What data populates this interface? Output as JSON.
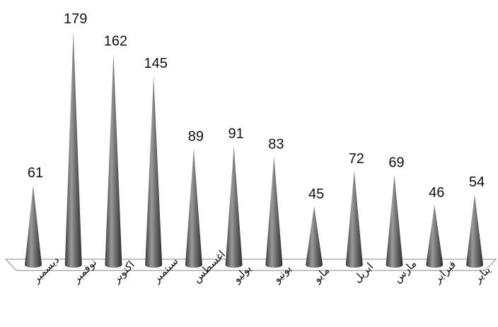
{
  "chart_data": {
    "type": "bar",
    "bar_shape": "cone",
    "categories": [
      "ديسمبر",
      "نوفمبر",
      "اكتوبر",
      "سبتمبر",
      "اغسطس",
      "يوليو",
      "يونيو",
      "مايو",
      "ابريل",
      "مارس",
      "فبراير",
      "يناير"
    ],
    "values": [
      61,
      179,
      162,
      145,
      89,
      91,
      83,
      45,
      72,
      69,
      46,
      54
    ],
    "ylim": [
      0,
      180
    ],
    "grid": false,
    "legend": "none",
    "data_labels": true,
    "bar_color": "#555555",
    "floor_color": "#ffffff"
  }
}
